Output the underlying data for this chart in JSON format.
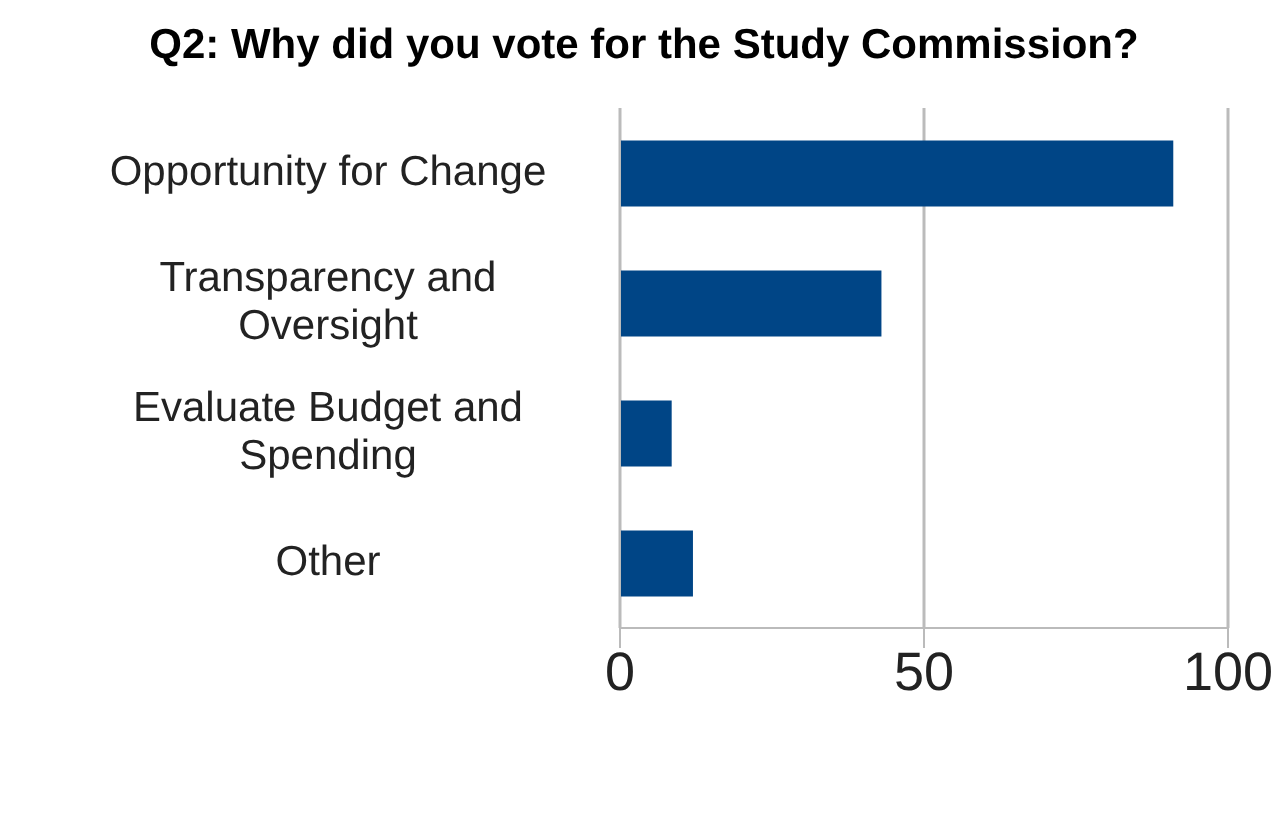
{
  "chart_data": {
    "type": "bar",
    "orientation": "horizontal",
    "title": "Q2: Why did you vote for the Study Commission?",
    "categories": [
      "Opportunity for Change",
      "Transparency and Oversight",
      "Evaluate Budget and Spending",
      "Other"
    ],
    "values": [
      91,
      43,
      8.5,
      12
    ],
    "color": "#004586",
    "xlim": [
      0,
      100
    ],
    "xticks": [
      0,
      50,
      100
    ],
    "grid": "x"
  }
}
